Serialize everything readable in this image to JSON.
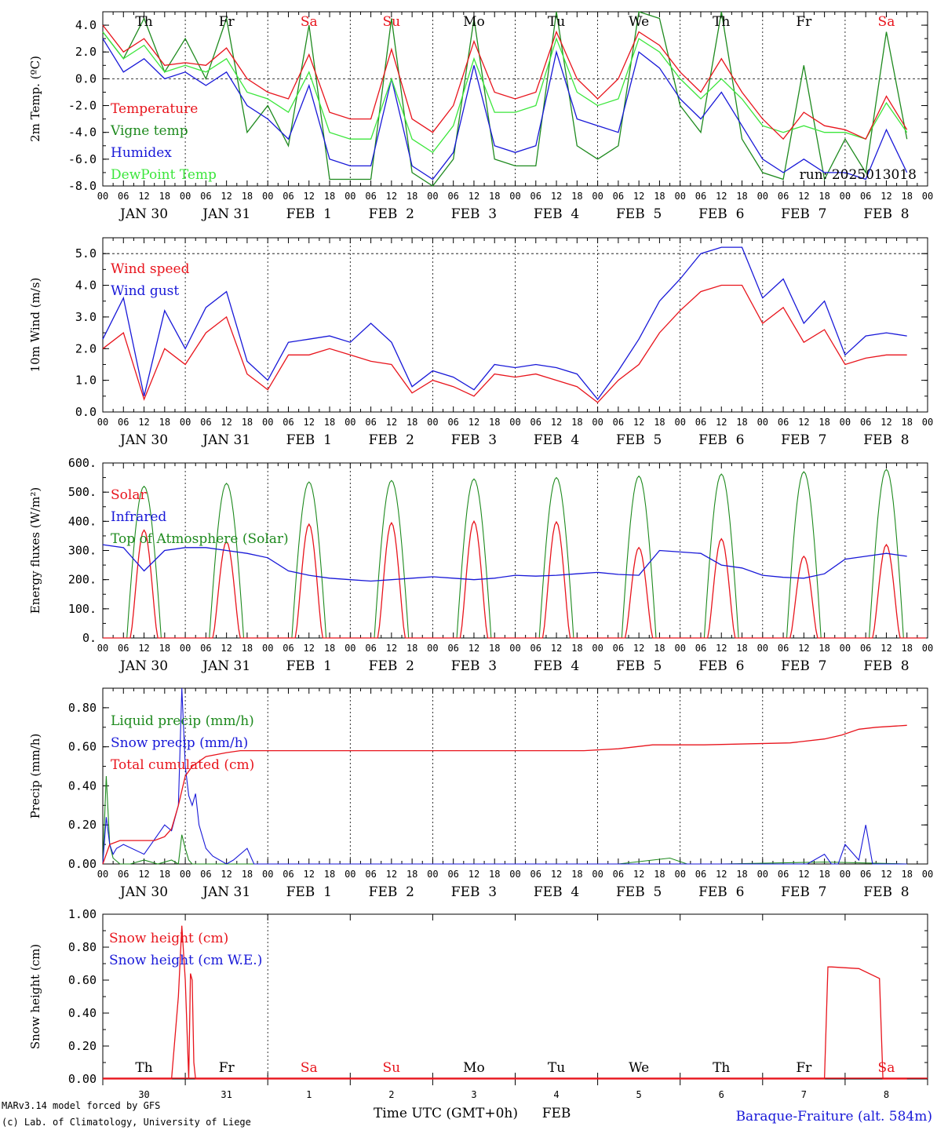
{
  "colors": {
    "red": "#e8141c",
    "green": "#1e8a1e",
    "blue": "#1818d8",
    "lightgreen": "#3ce63c"
  },
  "days": [
    "Th",
    "Fr",
    "Sa",
    "Su",
    "Mo",
    "Tu",
    "We",
    "Th",
    "Fr",
    "Sa"
  ],
  "day_colors": [
    "#000",
    "#000",
    "#e8141c",
    "#e8141c",
    "#000",
    "#000",
    "#000",
    "#000",
    "#000",
    "#e8141c"
  ],
  "dates": [
    "JAN 30",
    "JAN 31",
    "FEB  1",
    "FEB  2",
    "FEB  3",
    "FEB  4",
    "FEB  5",
    "FEB  6",
    "FEB  7",
    "FEB  8"
  ],
  "hour_ticks": [
    "00",
    "06",
    "12",
    "18"
  ],
  "run_label": "run: 2025013018",
  "bottom_day_numbers": [
    "30",
    "31",
    "1",
    "2",
    "3",
    "4",
    "5",
    "6",
    "7",
    "8"
  ],
  "bottom_month_label": "FEB",
  "xaxis_label": "Time UTC (GMT+0h)",
  "footer": {
    "line1": "MARv3.14 model forced by GFS",
    "line2": "(c) Lab. of Climatology, University of Liege",
    "station": "Baraque-Fraiture (alt. 584m)"
  },
  "chart_data": [
    {
      "type": "line",
      "ylabel": "2m Temp. (ºC)",
      "ylim": [
        -8,
        5
      ],
      "yticks": [
        "4.0",
        "2.0",
        "0.0",
        "-2.0",
        "-4.0",
        "-6.0",
        "-8.0"
      ],
      "ytick_values": [
        4,
        2,
        0,
        -2,
        -4,
        -6,
        -8
      ],
      "ref_line": 0,
      "legend": [
        "Temperature",
        "Vigne temp",
        "Humidex",
        "DewPoint Temp"
      ],
      "x_hours": [
        0,
        6,
        12,
        18,
        24,
        30,
        36,
        42,
        48,
        54,
        60,
        66,
        72,
        78,
        84,
        90,
        96,
        102,
        108,
        114,
        120,
        126,
        132,
        138,
        144,
        150,
        156,
        162,
        168,
        174,
        180,
        186,
        192,
        198,
        204,
        210,
        216,
        222,
        228,
        234
      ],
      "series": [
        {
          "name": "Temperature",
          "color": "red",
          "values": [
            4.0,
            2.0,
            3.0,
            1.0,
            1.2,
            1.0,
            2.3,
            0.0,
            -1.0,
            -1.5,
            1.8,
            -2.5,
            -3.0,
            -3.0,
            2.2,
            -3.0,
            -4.0,
            -2.0,
            2.8,
            -1.0,
            -1.5,
            -1.0,
            3.5,
            0.0,
            -1.5,
            0.0,
            3.5,
            2.5,
            0.5,
            -1.0,
            1.5,
            -1.0,
            -3.0,
            -4.5,
            -2.5,
            -3.5,
            -3.8,
            -4.5,
            -1.3,
            -3.8
          ]
        },
        {
          "name": "Vigne temp",
          "color": "green",
          "values": [
            3.5,
            1.5,
            4.5,
            0.5,
            3.0,
            0.0,
            4.5,
            -4.0,
            -2.0,
            -5.0,
            4.0,
            -7.5,
            -7.5,
            -7.5,
            4.5,
            -7.0,
            -8.5,
            -6.0,
            4.5,
            -6.0,
            -6.5,
            -6.5,
            5.0,
            -5.0,
            -6.0,
            -5.0,
            5.0,
            4.5,
            -2.0,
            -4.0,
            5.0,
            -4.5,
            -7.0,
            -7.5,
            1.0,
            -7.5,
            -4.5,
            -7.0,
            3.5,
            -4.5
          ]
        },
        {
          "name": "Humidex",
          "color": "blue",
          "values": [
            3.0,
            0.5,
            1.5,
            0.0,
            0.5,
            -0.5,
            0.5,
            -2.0,
            -3.0,
            -4.5,
            -0.5,
            -6.0,
            -6.5,
            -6.5,
            0.0,
            -6.5,
            -7.5,
            -5.5,
            1.0,
            -5.0,
            -5.5,
            -5.0,
            2.0,
            -3.0,
            -3.5,
            -4.0,
            2.0,
            0.8,
            -1.5,
            -3.0,
            -1.0,
            -3.5,
            -6.0,
            -7.0,
            -6.0,
            -7.0,
            -7.0,
            -7.5,
            -3.8,
            -7.0
          ]
        },
        {
          "name": "DewPoint Temp",
          "color": "lightgreen",
          "values": [
            3.5,
            1.5,
            2.5,
            0.5,
            1.0,
            0.5,
            1.5,
            -1.0,
            -1.5,
            -2.5,
            0.5,
            -4.0,
            -4.5,
            -4.5,
            0.0,
            -4.5,
            -5.5,
            -3.5,
            1.5,
            -2.5,
            -2.5,
            -2.0,
            3.0,
            -1.0,
            -2.0,
            -1.5,
            3.0,
            2.0,
            0.0,
            -1.5,
            0.0,
            -1.5,
            -3.5,
            -4.0,
            -3.5,
            -4.0,
            -4.0,
            -4.5,
            -1.8,
            -4.0
          ]
        }
      ]
    },
    {
      "type": "line",
      "ylabel": "10m Wind (m/s)",
      "ylim": [
        0,
        5.5
      ],
      "yticks": [
        "5.0",
        "4.0",
        "3.0",
        "2.0",
        "1.0",
        "0.0"
      ],
      "ytick_values": [
        5,
        4,
        3,
        2,
        1,
        0
      ],
      "ref_line": 5,
      "legend": [
        "Wind speed",
        "Wind gust"
      ],
      "x_hours": [
        0,
        6,
        12,
        18,
        24,
        30,
        36,
        42,
        48,
        54,
        60,
        66,
        72,
        78,
        84,
        90,
        96,
        102,
        108,
        114,
        120,
        126,
        132,
        138,
        144,
        150,
        156,
        162,
        168,
        174,
        180,
        186,
        192,
        198,
        204,
        210,
        216,
        222,
        228,
        234
      ],
      "series": [
        {
          "name": "Wind speed",
          "color": "red",
          "values": [
            2.0,
            2.5,
            0.4,
            2.0,
            1.5,
            2.5,
            3.0,
            1.2,
            0.7,
            1.8,
            1.8,
            2.0,
            1.8,
            1.6,
            1.5,
            0.6,
            1.0,
            0.8,
            0.5,
            1.2,
            1.1,
            1.2,
            1.0,
            0.8,
            0.3,
            1.0,
            1.5,
            2.5,
            3.2,
            3.8,
            4.0,
            4.0,
            2.8,
            3.3,
            2.2,
            2.6,
            1.5,
            1.7,
            1.8,
            1.8
          ]
        },
        {
          "name": "Wind gust",
          "color": "blue",
          "values": [
            2.3,
            3.6,
            0.5,
            3.2,
            2.0,
            3.3,
            3.8,
            1.6,
            1.0,
            2.2,
            2.3,
            2.4,
            2.2,
            2.8,
            2.2,
            0.8,
            1.3,
            1.1,
            0.7,
            1.5,
            1.4,
            1.5,
            1.4,
            1.2,
            0.4,
            1.3,
            2.3,
            3.5,
            4.2,
            5.0,
            5.2,
            5.2,
            3.6,
            4.2,
            2.8,
            3.5,
            1.8,
            2.4,
            2.5,
            2.4
          ]
        }
      ]
    },
    {
      "type": "line",
      "ylabel": "Energy fluxes (W/m²)",
      "ylim": [
        0,
        600
      ],
      "yticks": [
        "600.",
        "500.",
        "400.",
        "300.",
        "200.",
        "100.",
        "0."
      ],
      "ytick_values": [
        600,
        500,
        400,
        300,
        200,
        100,
        0
      ],
      "legend": [
        "Solar",
        "Infrared",
        "Top of Atmosphere (Solar)"
      ],
      "solar_peaks": [
        370,
        330,
        390,
        395,
        400,
        398,
        310,
        340,
        280,
        320
      ],
      "toa_peaks": [
        520,
        530,
        535,
        540,
        545,
        550,
        555,
        562,
        570,
        578
      ],
      "x_hours": [
        0,
        6,
        12,
        18,
        24,
        30,
        36,
        42,
        48,
        54,
        60,
        66,
        72,
        78,
        84,
        90,
        96,
        102,
        108,
        114,
        120,
        126,
        132,
        138,
        144,
        150,
        156,
        162,
        168,
        174,
        180,
        186,
        192,
        198,
        204,
        210,
        216,
        222,
        228,
        234
      ],
      "infrared": {
        "name": "Infrared",
        "color": "blue",
        "values": [
          320,
          310,
          230,
          300,
          310,
          310,
          300,
          290,
          275,
          230,
          215,
          205,
          200,
          195,
          200,
          205,
          210,
          205,
          200,
          205,
          215,
          212,
          215,
          220,
          225,
          218,
          215,
          300,
          295,
          290,
          250,
          240,
          215,
          208,
          205,
          220,
          270,
          280,
          290,
          280
        ]
      }
    },
    {
      "type": "line",
      "ylabel": "Precip (mm/h)",
      "ylim": [
        0,
        0.9
      ],
      "yticks": [
        "0.80",
        "0.60",
        "0.40",
        "0.20",
        "0.00"
      ],
      "ytick_values": [
        0.8,
        0.6,
        0.4,
        0.2,
        0.0
      ],
      "legend": [
        "Liquid precip (mm/h)",
        "Snow precip (mm/h)",
        "Total cumulated (cm)"
      ],
      "liquid": {
        "x": [
          0,
          1,
          2,
          3,
          5,
          8,
          12,
          16,
          20,
          22,
          23,
          24,
          25,
          26,
          30,
          36,
          48,
          150,
          160,
          165,
          170,
          180,
          210,
          234
        ],
        "values": [
          0.0,
          0.45,
          0.1,
          0.03,
          0.0,
          0.0,
          0.02,
          0.0,
          0.02,
          0.0,
          0.15,
          0.08,
          0.02,
          0.0,
          0.0,
          0.0,
          0.0,
          0.0,
          0.02,
          0.03,
          0.0,
          0.0,
          0.01,
          0.0
        ]
      },
      "snow": {
        "x": [
          0,
          1,
          2,
          3,
          4,
          6,
          12,
          16,
          18,
          20,
          22,
          23,
          24,
          25,
          26,
          27,
          28,
          30,
          32,
          36,
          38,
          42,
          44,
          48,
          190,
          205,
          210,
          212,
          214,
          216,
          218,
          220,
          222,
          224,
          234
        ],
        "values": [
          0.0,
          0.24,
          0.1,
          0.05,
          0.08,
          0.1,
          0.05,
          0.15,
          0.2,
          0.17,
          0.3,
          0.9,
          0.5,
          0.35,
          0.3,
          0.36,
          0.2,
          0.08,
          0.04,
          0.0,
          0.02,
          0.08,
          0.0,
          0.0,
          0.0,
          0.0,
          0.05,
          0.0,
          0.0,
          0.1,
          0.06,
          0.02,
          0.2,
          0.0,
          0.0
        ]
      },
      "cumulated": {
        "x": [
          0,
          2,
          5,
          10,
          15,
          18,
          20,
          22,
          24,
          26,
          30,
          36,
          40,
          48,
          96,
          140,
          150,
          160,
          175,
          200,
          210,
          215,
          220,
          225,
          234
        ],
        "values": [
          0.0,
          0.1,
          0.12,
          0.12,
          0.12,
          0.14,
          0.18,
          0.3,
          0.45,
          0.5,
          0.55,
          0.57,
          0.58,
          0.58,
          0.58,
          0.58,
          0.59,
          0.61,
          0.61,
          0.62,
          0.64,
          0.66,
          0.69,
          0.7,
          0.71
        ]
      }
    },
    {
      "type": "line",
      "ylabel": "Snow height (cm)",
      "ylim": [
        0,
        1.0
      ],
      "yticks": [
        "1.00",
        "0.80",
        "0.60",
        "0.40",
        "0.20",
        "0.00"
      ],
      "ytick_values": [
        1.0,
        0.8,
        0.6,
        0.4,
        0.2,
        0.0
      ],
      "legend": [
        "Snow height (cm)",
        "Snow height (cm W.E.)"
      ],
      "snow_height": {
        "x": [
          0,
          20,
          22,
          23,
          24,
          25,
          25.5,
          26,
          26.5,
          27,
          28,
          210,
          211,
          212,
          220,
          226,
          227,
          228,
          234
        ],
        "values": [
          0,
          0,
          0.5,
          0.93,
          0.6,
          0.0,
          0.64,
          0.6,
          0.1,
          0.0,
          0.0,
          0.0,
          0.68,
          0.68,
          0.67,
          0.61,
          0.0,
          0.0,
          0.0
        ]
      }
    }
  ]
}
